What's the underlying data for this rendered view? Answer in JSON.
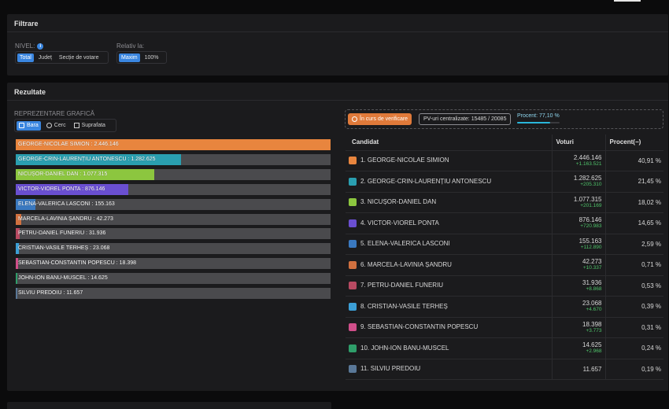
{
  "filters": {
    "title": "Filtrare",
    "nivel_label": "NIVEL:",
    "nivel_info": "i",
    "nivel_options": [
      "Total",
      "Județ",
      "Secție de votare"
    ],
    "relativ_label": "Relativ la:",
    "relativ_options": [
      "Maxim",
      "100%"
    ]
  },
  "results": {
    "title": "Rezultate",
    "chart_heading": "REPREZENTARE GRAFICĂ",
    "chart_types": [
      "Bara",
      "Cerc",
      "Suprafata"
    ],
    "status_badge": "În curs de verificare",
    "pv_badge": "PV-uri centralizate: 15485 / 20085",
    "procent_label": "Procent: 77,10 %",
    "procent_value": 77.1,
    "table_headers": {
      "candidate": "Candidat",
      "votes": "Voturi",
      "percent": "Procent(−)"
    },
    "candidates": [
      {
        "rank": "1.",
        "name": "GEORGE-NICOLAE SIMION",
        "bar_label": "GEORGE-NICOLAE SIMION : 2.446.146",
        "votes": "2.446.146",
        "delta": "+1.163.521",
        "percent": "40,91 %",
        "color": "#e8853e"
      },
      {
        "rank": "2.",
        "name": "GEORGE-CRIN-LAURENȚIU ANTONESCU",
        "bar_label": "GEORGE-CRIN-LAURENȚIU ANTONESCU : 1.282.625",
        "votes": "1.282.625",
        "delta": "+205.310",
        "percent": "21,45 %",
        "color": "#2a9fb0"
      },
      {
        "rank": "3.",
        "name": "NICUȘOR-DANIEL DAN",
        "bar_label": "NICUȘOR-DANIEL DAN : 1.077.315",
        "votes": "1.077.315",
        "delta": "+201.169",
        "percent": "18,02 %",
        "color": "#8cc63f"
      },
      {
        "rank": "4.",
        "name": "VICTOR-VIOREL PONTA",
        "bar_label": "VICTOR-VIOREL PONTA : 876.146",
        "votes": "876.146",
        "delta": "+720.983",
        "percent": "14,65 %",
        "color": "#6a4fd1"
      },
      {
        "rank": "5.",
        "name": "ELENA-VALERICA LASCONI",
        "bar_label": "ELENA-VALERICA LASCONI : 155.163",
        "votes": "155.163",
        "delta": "+112.890",
        "percent": "2,59 %",
        "color": "#3a79c0"
      },
      {
        "rank": "6.",
        "name": "MARCELA-LAVINIA ȘANDRU",
        "bar_label": "MARCELA-LAVINIA ȘANDRU : 42.273",
        "votes": "42.273",
        "delta": "+10.337",
        "percent": "0,71 %",
        "color": "#d0703f"
      },
      {
        "rank": "7.",
        "name": "PETRU-DANIEL FUNERIU",
        "bar_label": "PETRU-DANIEL FUNERIU : 31.936",
        "votes": "31.936",
        "delta": "+8.868",
        "percent": "0,53 %",
        "color": "#b84a62"
      },
      {
        "rank": "8.",
        "name": "CRISTIAN-VASILE TERHEȘ",
        "bar_label": "CRISTIAN-VASILE TERHEȘ : 23.068",
        "votes": "23.068",
        "delta": "+4.670",
        "percent": "0,39 %",
        "color": "#3c9fd6"
      },
      {
        "rank": "9.",
        "name": "SEBASTIAN-CONSTANTIN POPESCU",
        "bar_label": "SEBASTIAN-CONSTANTIN POPESCU : 18.398",
        "votes": "18.398",
        "delta": "+3.773",
        "percent": "0,31 %",
        "color": "#d04f8a"
      },
      {
        "rank": "10.",
        "name": "JOHN-ION BANU-MUSCEL",
        "bar_label": "JOHN-ION BANU-MUSCEL : 14.625",
        "votes": "14.625",
        "delta": "+2.968",
        "percent": "0,24 %",
        "color": "#2f9e6a"
      },
      {
        "rank": "11.",
        "name": "SILVIU PREDOIU",
        "bar_label": "SILVIU PREDOIU : 11.657",
        "votes": "11.657",
        "delta": "",
        "percent": "0,19 %",
        "color": "#5a7898"
      }
    ]
  },
  "chart_data": {
    "type": "bar",
    "categories": [
      "GEORGE-NICOLAE SIMION",
      "GEORGE-CRIN-LAURENȚIU ANTONESCU",
      "NICUȘOR-DANIEL DAN",
      "VICTOR-VIOREL PONTA",
      "ELENA-VALERICA LASCONI",
      "MARCELA-LAVINIA ȘANDRU",
      "PETRU-DANIEL FUNERIU",
      "CRISTIAN-VASILE TERHEȘ",
      "SEBASTIAN-CONSTANTIN POPESCU",
      "JOHN-ION BANU-MUSCEL",
      "SILVIU PREDOIU"
    ],
    "values": [
      2446146,
      1282625,
      1077315,
      876146,
      155163,
      42273,
      31936,
      23068,
      18398,
      14625,
      11657
    ],
    "title": "",
    "xlabel": "",
    "ylabel": ""
  }
}
